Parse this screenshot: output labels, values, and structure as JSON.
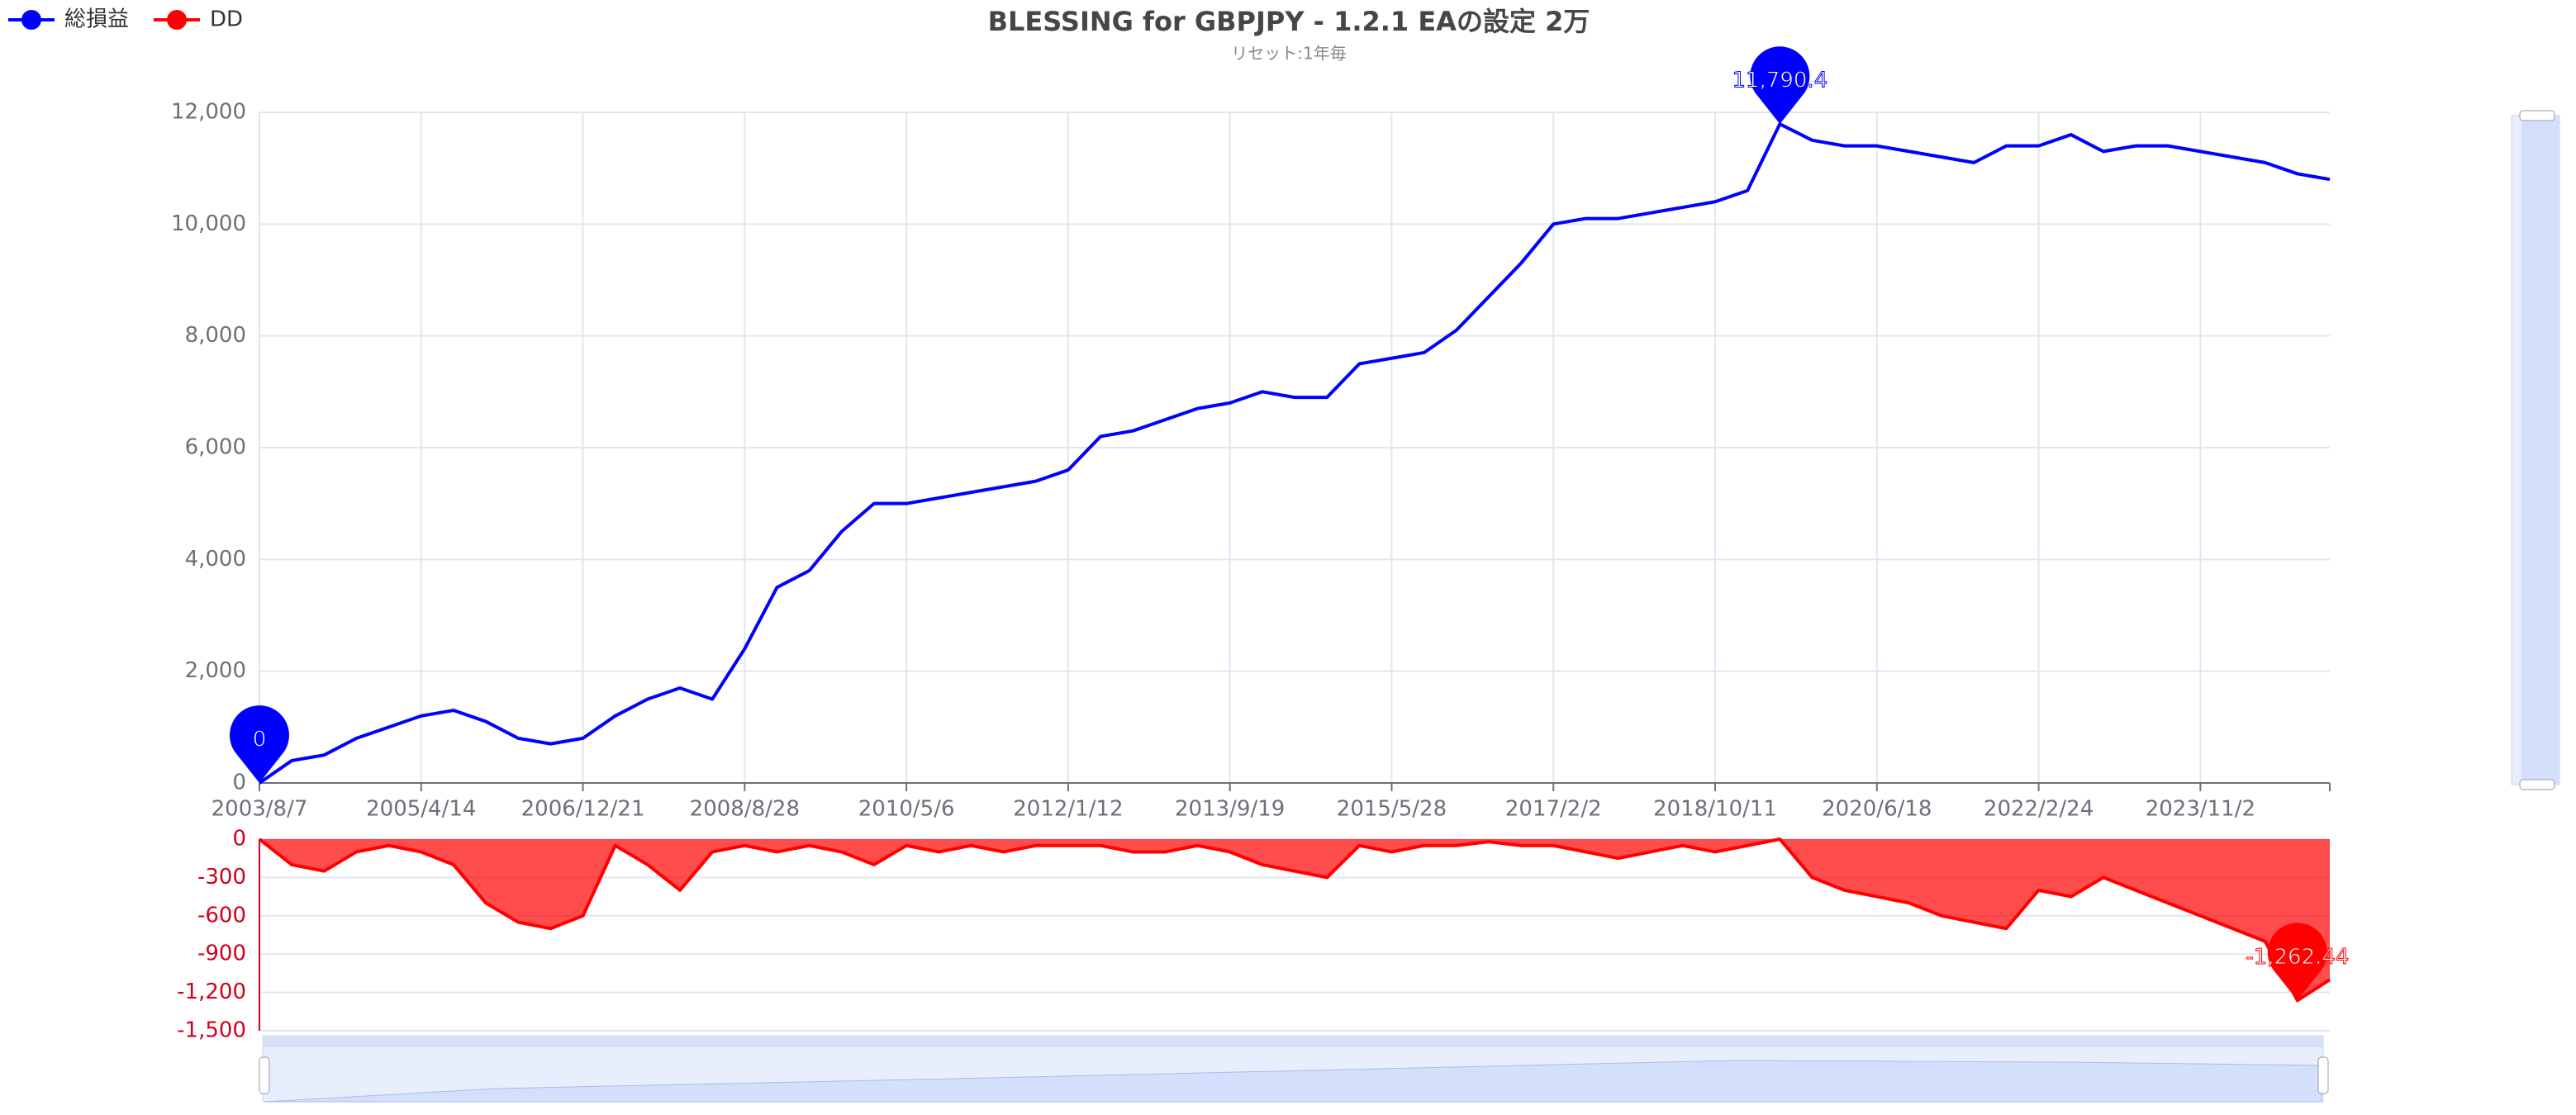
{
  "chart_data": {
    "type": "line",
    "title": "BLESSING for GBPJPY - 1.2.1 EAの設定 2万",
    "subtitle": "リセット:1年毎",
    "categories": [
      "2003/8/7",
      null,
      null,
      null,
      null,
      "2005/4/14",
      null,
      null,
      null,
      null,
      "2006/12/21",
      null,
      null,
      null,
      null,
      "2008/8/28",
      null,
      null,
      null,
      null,
      "2010/5/6",
      null,
      null,
      null,
      null,
      "2012/1/12",
      null,
      null,
      null,
      null,
      "2013/9/19",
      null,
      null,
      null,
      null,
      "2015/5/28",
      null,
      null,
      null,
      null,
      "2017/2/2",
      null,
      null,
      null,
      null,
      "2018/10/11",
      null,
      null,
      null,
      null,
      "2020/6/18",
      null,
      null,
      null,
      null,
      "2022/2/24",
      null,
      null,
      null,
      null,
      "2023/11/2",
      null,
      null,
      null,
      null
    ],
    "series": [
      {
        "name": "総損益",
        "color": "#0000ff",
        "values": [
          0,
          400,
          500,
          800,
          1000,
          1200,
          1300,
          1100,
          800,
          700,
          800,
          1200,
          1500,
          1700,
          1500,
          2400,
          3500,
          3800,
          4500,
          5000,
          5000,
          5100,
          5200,
          5300,
          5400,
          5600,
          6200,
          6300,
          6500,
          6700,
          6800,
          7000,
          6900,
          6900,
          7500,
          7600,
          7700,
          8100,
          8700,
          9300,
          10000,
          10100,
          10100,
          10200,
          10300,
          10400,
          10600,
          11790.4,
          11500,
          11400,
          11400,
          11300,
          11200,
          11100,
          11400,
          11400,
          11600,
          11300,
          11400,
          11400,
          11300,
          11200,
          11100,
          10900,
          10800
        ],
        "value_labels": [
          "0",
          null,
          null,
          null,
          null,
          null,
          null,
          null,
          null,
          null,
          null,
          null,
          null,
          null,
          null,
          null,
          null,
          null,
          null,
          null,
          null,
          null,
          null,
          null,
          null,
          null,
          null,
          null,
          null,
          null,
          null,
          null,
          null,
          null,
          null,
          null,
          null,
          null,
          null,
          null,
          null,
          null,
          null,
          null,
          null,
          null,
          null,
          "11,790.4",
          null,
          null,
          null,
          null,
          null,
          null,
          null,
          null,
          null,
          null,
          null,
          null,
          null,
          null,
          null,
          null,
          null
        ]
      },
      {
        "name": "DD",
        "color": "#ff0000",
        "axis": "y2",
        "values": [
          0,
          -200,
          -250,
          -100,
          -50,
          -100,
          -200,
          -500,
          -650,
          -700,
          -600,
          -50,
          -200,
          -400,
          -100,
          -50,
          -100,
          -50,
          -100,
          -200,
          -50,
          -100,
          -50,
          -100,
          -50,
          -50,
          -50,
          -100,
          -100,
          -50,
          -100,
          -200,
          -250,
          -300,
          -50,
          -100,
          -50,
          -50,
          -20,
          -50,
          -50,
          -100,
          -150,
          -100,
          -50,
          -100,
          -50,
          0,
          -300,
          -400,
          -450,
          -500,
          -600,
          -650,
          -700,
          -400,
          -450,
          -300,
          -400,
          -500,
          -600,
          -700,
          -800,
          -1262.44,
          -1100
        ],
        "value_labels": [
          null,
          null,
          null,
          null,
          null,
          null,
          null,
          null,
          null,
          null,
          null,
          null,
          null,
          null,
          null,
          null,
          null,
          null,
          null,
          null,
          null,
          null,
          null,
          null,
          null,
          null,
          null,
          null,
          null,
          null,
          null,
          null,
          null,
          null,
          null,
          null,
          null,
          null,
          null,
          null,
          null,
          null,
          null,
          null,
          null,
          null,
          null,
          null,
          null,
          null,
          null,
          null,
          null,
          null,
          null,
          null,
          null,
          null,
          null,
          null,
          null,
          null,
          null,
          "-1,262.44",
          null
        ]
      }
    ],
    "ylim": [
      0,
      12000
    ],
    "yticks": [
      0,
      {
        "value": 2000,
        "label": "2,000"
      },
      {
        "value": 4000,
        "label": "4,000"
      },
      {
        "value": 6000,
        "label": "6,000"
      },
      {
        "value": 8000,
        "label": "8,000"
      },
      {
        "value": 10000,
        "label": "10,000"
      },
      {
        "value": 12000,
        "label": "12,000"
      }
    ],
    "y2lim": [
      -1500,
      0
    ],
    "y2ticks": [
      0,
      -300,
      -600,
      -900,
      {
        "value": -1200,
        "label": "-1,200"
      },
      {
        "value": -1500,
        "label": "-1,500"
      }
    ],
    "grid": true
  }
}
